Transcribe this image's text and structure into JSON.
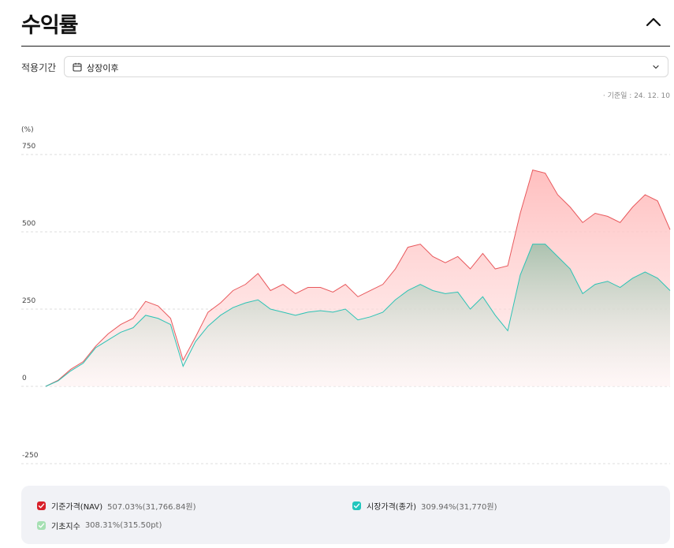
{
  "header": {
    "title": "수익률"
  },
  "filter": {
    "label": "적용기간",
    "value": "상장이후"
  },
  "basis_date": "· 기준일 : 24. 12. 10",
  "colors": {
    "nav": "#e8585c",
    "nav_fill": "#ffcccc",
    "market": "#2cc3b5",
    "market_fill": "#b9d3c4",
    "index": "#a6e0b3"
  },
  "icons": {
    "collapse": "chevron-up-icon",
    "calendar": "calendar-icon",
    "dropdown": "chevron-down-icon",
    "check": "check-icon"
  },
  "chart_data": {
    "type": "area",
    "unit_label": "(%)",
    "ylim": [
      -250,
      750
    ],
    "yticks": [
      750,
      500,
      250,
      0,
      -250
    ],
    "grid": true,
    "legend_position": "bottom",
    "x": [
      0,
      2,
      4,
      6,
      8,
      10,
      12,
      14,
      16,
      18,
      20,
      22,
      24,
      26,
      28,
      30,
      32,
      34,
      36,
      38,
      40,
      42,
      44,
      46,
      48,
      50,
      52,
      54,
      56,
      58,
      60,
      62,
      64,
      66,
      68,
      70,
      72,
      74,
      76,
      78,
      80,
      82,
      84,
      86,
      88,
      90,
      92,
      94,
      96,
      98,
      100
    ],
    "series": [
      {
        "name": "기준가격(NAV)",
        "values": [
          0,
          20,
          55,
          80,
          130,
          170,
          200,
          220,
          275,
          260,
          220,
          85,
          160,
          240,
          270,
          310,
          330,
          365,
          310,
          330,
          300,
          320,
          320,
          305,
          330,
          290,
          310,
          330,
          380,
          450,
          460,
          420,
          400,
          420,
          380,
          430,
          380,
          390,
          560,
          700,
          690,
          620,
          580,
          530,
          560,
          550,
          530,
          580,
          620,
          600,
          507
        ]
      },
      {
        "name": "시장가격(종가)",
        "values": [
          0,
          18,
          50,
          75,
          125,
          150,
          175,
          190,
          230,
          220,
          200,
          65,
          145,
          195,
          230,
          255,
          270,
          280,
          250,
          240,
          230,
          240,
          245,
          240,
          250,
          215,
          225,
          240,
          280,
          310,
          330,
          310,
          300,
          305,
          250,
          290,
          230,
          180,
          360,
          460,
          460,
          420,
          380,
          300,
          330,
          340,
          320,
          350,
          370,
          350,
          310
        ]
      }
    ]
  },
  "legend": [
    {
      "name": "기준가격(NAV)",
      "value": "507.03%(31,766.84원)"
    },
    {
      "name": "시장가격(종가)",
      "value": "309.94%(31,770원)"
    },
    {
      "name": "기초지수",
      "value": "308.31%(315.50pt)"
    }
  ]
}
